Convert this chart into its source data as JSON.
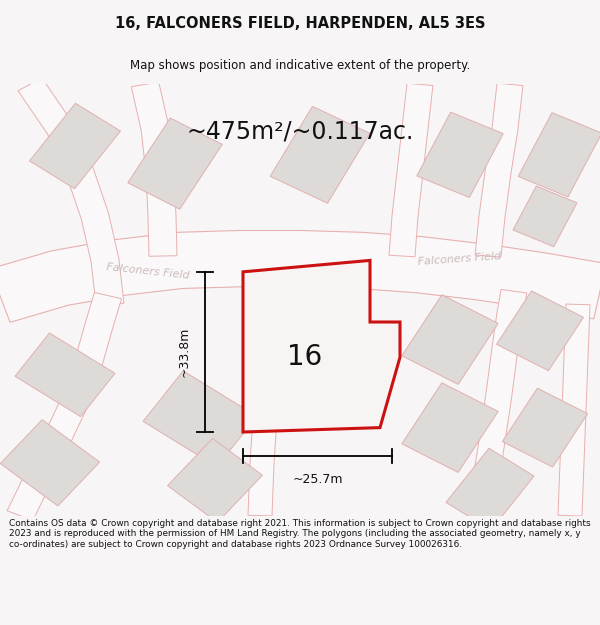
{
  "title": "16, FALCONERS FIELD, HARPENDEN, AL5 3ES",
  "subtitle": "Map shows position and indicative extent of the property.",
  "area_text": "~475m²/~0.117ac.",
  "label_16": "16",
  "label_width": "~25.7m",
  "label_height": "~33.8m",
  "road_name_left": "Falconers Field",
  "road_name_right": "Falconers Field",
  "footer": "Contains OS data © Crown copyright and database right 2021. This information is subject to Crown copyright and database rights 2023 and is reproduced with the permission of HM Land Registry. The polygons (including the associated geometry, namely x, y co-ordinates) are subject to Crown copyright and database rights 2023 Ordnance Survey 100026316.",
  "bg_color": "#f7f5f5",
  "map_bg": "#f0eeed",
  "road_color": "#faf8f8",
  "road_line_color": "#e8b0b0",
  "plot_fill": "#f8f4f4",
  "plot_edge": "#cc1111",
  "building_fill": "#dedad8",
  "building_edge": "#e0b0b0",
  "footer_bg": "#ffffff",
  "text_white": "#e8e0e0",
  "title_color": "#111111"
}
